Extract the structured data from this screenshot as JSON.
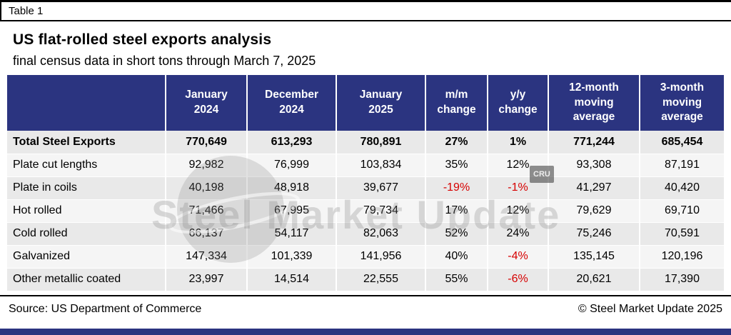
{
  "page": {
    "table_label": "Table 1",
    "source": "Source: US Department of Commerce",
    "copyright": "© Steel Market Update 2025",
    "watermark_text": "Steel Market Update",
    "watermark_badge": "CRU"
  },
  "colors": {
    "header_bg": "#2b3480",
    "header_text": "#ffffff",
    "row_odd": "#e9e9e9",
    "row_even": "#f5f5f5",
    "negative": "#d60000"
  },
  "chart_data": {
    "type": "table",
    "title": "US flat-rolled steel exports analysis",
    "subtitle": "final census data in short tons through March 7, 2025",
    "columns": [
      "",
      "January\n2024",
      "December\n2024",
      "January\n2025",
      "m/m\nchange",
      "y/y\nchange",
      "12-month\nmoving\naverage",
      "3-month\nmoving\naverage"
    ],
    "rows": [
      {
        "label": "Total Steel Exports",
        "bold": true,
        "values": [
          "770,649",
          "613,293",
          "780,891",
          "27%",
          "1%",
          "771,244",
          "685,454"
        ]
      },
      {
        "label": "Plate cut lengths",
        "bold": false,
        "values": [
          "92,982",
          "76,999",
          "103,834",
          "35%",
          "12%",
          "93,308",
          "87,191"
        ]
      },
      {
        "label": "Plate in coils",
        "bold": false,
        "values": [
          "40,198",
          "48,918",
          "39,677",
          "-19%",
          "-1%",
          "41,297",
          "40,420"
        ]
      },
      {
        "label": "Hot rolled",
        "bold": false,
        "values": [
          "71,466",
          "67,995",
          "79,734",
          "17%",
          "12%",
          "79,629",
          "69,710"
        ]
      },
      {
        "label": "Cold rolled",
        "bold": false,
        "values": [
          "66,137",
          "54,117",
          "82,063",
          "52%",
          "24%",
          "75,246",
          "70,591"
        ]
      },
      {
        "label": "Galvanized",
        "bold": false,
        "values": [
          "147,334",
          "101,339",
          "141,956",
          "40%",
          "-4%",
          "135,145",
          "120,196"
        ]
      },
      {
        "label": "Other metallic coated",
        "bold": false,
        "values": [
          "23,997",
          "14,514",
          "22,555",
          "55%",
          "-6%",
          "20,621",
          "17,390"
        ]
      }
    ]
  }
}
